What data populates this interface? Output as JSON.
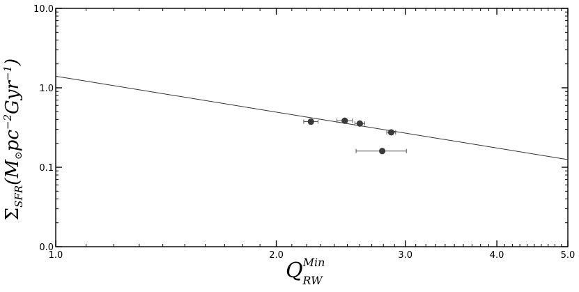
{
  "chart_data": {
    "type": "scatter",
    "title": "",
    "xlabel": {
      "base": "Q",
      "sup": "Min",
      "sub": "RW"
    },
    "ylabel": {
      "sigma": "Σ",
      "sub": "SFR",
      "body_prefix": "(M",
      "sun_symbol": "⊙",
      "body_mid": "pc",
      "exp1": "−2",
      "body_mid2": "Gyr",
      "exp2": "−1",
      "body_suffix": ")"
    },
    "x_scale": "log",
    "y_scale": "log",
    "xlim": [
      1.0,
      5.0
    ],
    "ylim": [
      0.01,
      10.0
    ],
    "grid": false,
    "x_ticks": [
      {
        "value": 1.0,
        "label": "1.0"
      },
      {
        "value": 2.0,
        "label": "2.0"
      },
      {
        "value": 3.0,
        "label": "3.0"
      },
      {
        "value": 4.0,
        "label": "4.0"
      },
      {
        "value": 5.0,
        "label": "5.0"
      }
    ],
    "y_ticks": [
      {
        "value": 0.01,
        "label": "0.0"
      },
      {
        "value": 0.1,
        "label": "0.1"
      },
      {
        "value": 1.0,
        "label": "1.0"
      },
      {
        "value": 10.0,
        "label": "10.0"
      }
    ],
    "points": [
      {
        "x": 2.23,
        "y": 0.375,
        "xerr": 0.05
      },
      {
        "x": 2.48,
        "y": 0.385,
        "xerr": 0.06
      },
      {
        "x": 2.6,
        "y": 0.355,
        "xerr": 0.04
      },
      {
        "x": 2.87,
        "y": 0.275,
        "xerr": 0.04
      },
      {
        "x": 2.79,
        "y": 0.16,
        "xerr": 0.22
      }
    ],
    "fit_line": {
      "x": [
        1.0,
        5.0
      ],
      "y": [
        1.4,
        0.125
      ]
    },
    "colors": {
      "marker": "#3a3a3a",
      "line": "#333333",
      "axis": "#000000"
    }
  }
}
